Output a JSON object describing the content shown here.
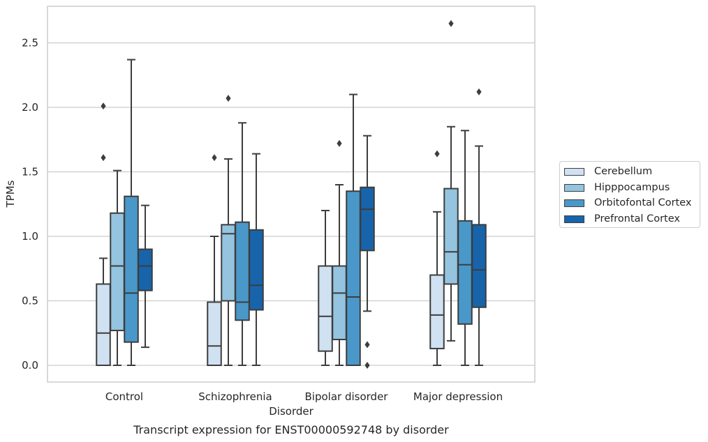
{
  "caption": "Transcript expression for ENST00000592748 by disorder",
  "legend": {
    "items": [
      {
        "label": "Cerebellum",
        "color": "#d0e1f2"
      },
      {
        "label": "Hipppocampus",
        "color": "#94c4df"
      },
      {
        "label": "Orbitofontal Cortex",
        "color": "#4a98c9"
      },
      {
        "label": "Prefrontal Cortex",
        "color": "#1764ab"
      }
    ]
  },
  "chart_data": {
    "type": "box",
    "title": "",
    "xlabel": "Disorder",
    "ylabel": "TPMs",
    "ylim": [
      -0.13,
      2.79
    ],
    "yticks": [
      0.0,
      0.5,
      1.0,
      1.5,
      2.0,
      2.5
    ],
    "ytick_labels": [
      "0.0",
      "0.5",
      "1.0",
      "1.5",
      "2.0",
      "2.5"
    ],
    "grid": true,
    "legend_position": "right",
    "categories": [
      "Control",
      "Schizophrenia",
      "Bipolar disorder",
      "Major depression"
    ],
    "series": [
      {
        "name": "Cerebellum",
        "color": "#d0e1f2",
        "boxes": [
          {
            "whisker_low": 0.0,
            "q1": 0.0,
            "median": 0.25,
            "q3": 0.63,
            "whisker_high": 0.83,
            "outliers": [
              1.61,
              2.01
            ]
          },
          {
            "whisker_low": 0.0,
            "q1": 0.0,
            "median": 0.15,
            "q3": 0.49,
            "whisker_high": 1.0,
            "outliers": [
              1.61
            ]
          },
          {
            "whisker_low": 0.0,
            "q1": 0.11,
            "median": 0.38,
            "q3": 0.77,
            "whisker_high": 1.2,
            "outliers": []
          },
          {
            "whisker_low": 0.0,
            "q1": 0.13,
            "median": 0.39,
            "q3": 0.7,
            "whisker_high": 1.19,
            "outliers": [
              1.64
            ]
          }
        ]
      },
      {
        "name": "Hipppocampus",
        "color": "#94c4df",
        "boxes": [
          {
            "whisker_low": 0.0,
            "q1": 0.27,
            "median": 0.77,
            "q3": 1.18,
            "whisker_high": 1.51,
            "outliers": []
          },
          {
            "whisker_low": 0.0,
            "q1": 0.5,
            "median": 1.02,
            "q3": 1.09,
            "whisker_high": 1.6,
            "outliers": [
              2.07
            ]
          },
          {
            "whisker_low": 0.0,
            "q1": 0.2,
            "median": 0.56,
            "q3": 0.77,
            "whisker_high": 1.4,
            "outliers": [
              1.72
            ]
          },
          {
            "whisker_low": 0.19,
            "q1": 0.63,
            "median": 0.88,
            "q3": 1.37,
            "whisker_high": 1.85,
            "outliers": [
              2.65
            ]
          }
        ]
      },
      {
        "name": "Orbitofontal Cortex",
        "color": "#4a98c9",
        "boxes": [
          {
            "whisker_low": 0.0,
            "q1": 0.18,
            "median": 0.56,
            "q3": 1.31,
            "whisker_high": 2.37,
            "outliers": []
          },
          {
            "whisker_low": 0.0,
            "q1": 0.35,
            "median": 0.49,
            "q3": 1.11,
            "whisker_high": 1.88,
            "outliers": []
          },
          {
            "whisker_low": 0.0,
            "q1": 0.0,
            "median": 0.53,
            "q3": 1.35,
            "whisker_high": 2.1,
            "outliers": []
          },
          {
            "whisker_low": 0.0,
            "q1": 0.32,
            "median": 0.78,
            "q3": 1.12,
            "whisker_high": 1.82,
            "outliers": []
          }
        ]
      },
      {
        "name": "Prefrontal Cortex",
        "color": "#1764ab",
        "boxes": [
          {
            "whisker_low": 0.14,
            "q1": 0.58,
            "median": 0.77,
            "q3": 0.9,
            "whisker_high": 1.24,
            "outliers": []
          },
          {
            "whisker_low": 0.0,
            "q1": 0.43,
            "median": 0.62,
            "q3": 1.05,
            "whisker_high": 1.64,
            "outliers": []
          },
          {
            "whisker_low": 0.42,
            "q1": 0.89,
            "median": 1.21,
            "q3": 1.38,
            "whisker_high": 1.78,
            "outliers": [
              0.0,
              0.16
            ]
          },
          {
            "whisker_low": 0.0,
            "q1": 0.45,
            "median": 0.74,
            "q3": 1.09,
            "whisker_high": 1.7,
            "outliers": [
              2.12
            ]
          }
        ]
      }
    ]
  }
}
